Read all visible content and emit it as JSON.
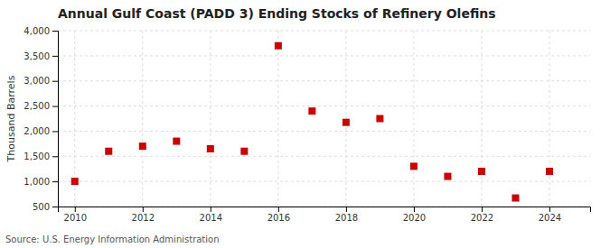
{
  "chart_data": {
    "type": "scatter",
    "title": "Annual Gulf Coast (PADD 3) Ending Stocks of Refinery Olefins",
    "ylabel": "Thousand Barrels",
    "annotations": [
      "Source: U.S. Energy Information Administration"
    ],
    "x": [
      2010,
      2011,
      2012,
      2013,
      2014,
      2015,
      2016,
      2017,
      2018,
      2019,
      2020,
      2021,
      2022,
      2023,
      2024
    ],
    "values": [
      1000,
      1600,
      1700,
      1800,
      1650,
      1600,
      3700,
      2400,
      2175,
      2250,
      1300,
      1100,
      1200,
      670,
      1200
    ],
    "color": "#cc0000",
    "marker": "square",
    "xlim": [
      2009.5,
      2025.2
    ],
    "xticks": [
      2010,
      2012,
      2014,
      2016,
      2018,
      2020,
      2022,
      2024
    ],
    "ylim": [
      500,
      4000
    ],
    "yticks": [
      500,
      {
        "value": 1000,
        "label": "1,000"
      },
      {
        "value": 1500,
        "label": "1,500"
      },
      {
        "value": 2000,
        "label": "2,000"
      },
      {
        "value": 2500,
        "label": "2,500"
      },
      {
        "value": 3000,
        "label": "3,000"
      },
      {
        "value": 3500,
        "label": "3,500"
      },
      {
        "value": 4000,
        "label": "4,000"
      }
    ],
    "grid": true
  }
}
